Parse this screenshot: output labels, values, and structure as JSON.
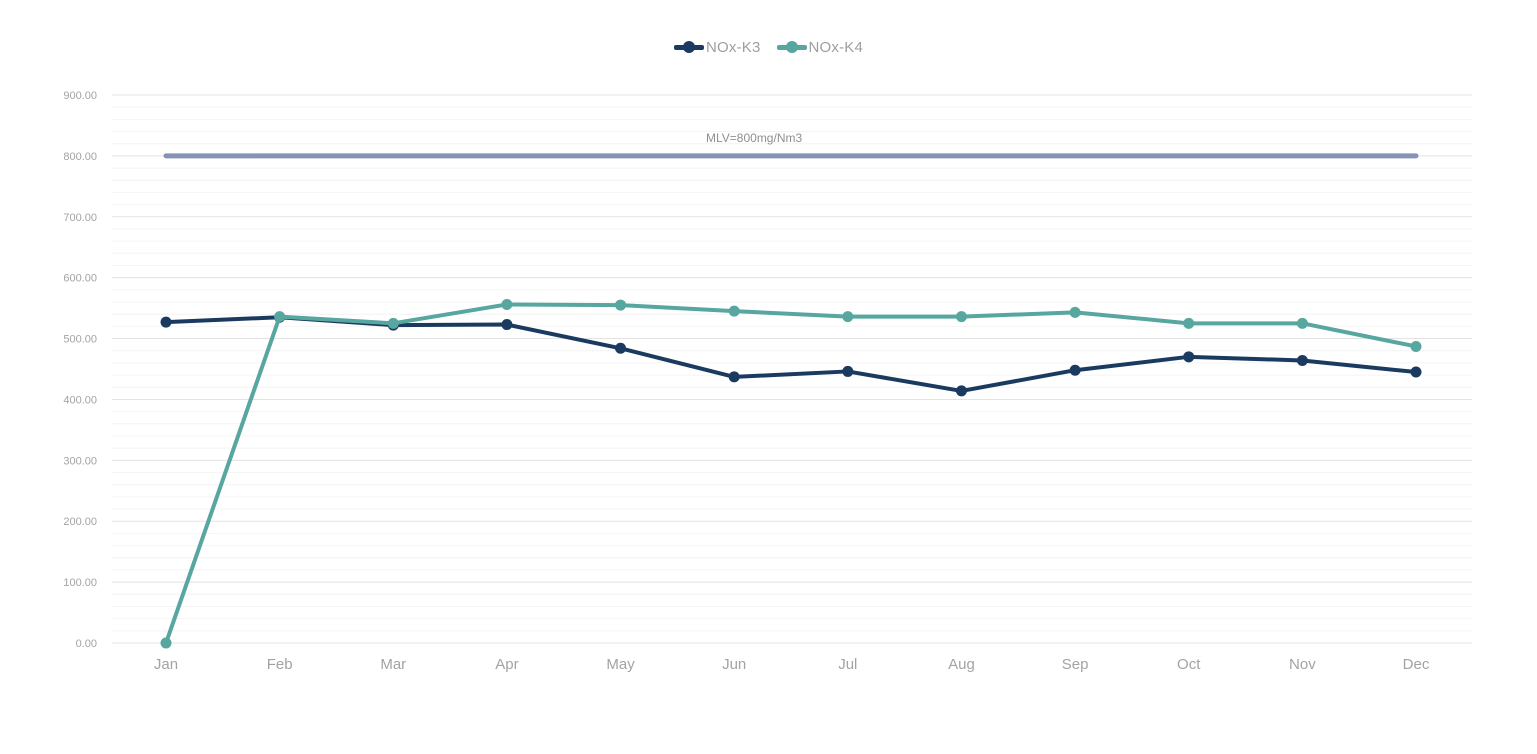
{
  "chart_data": {
    "type": "line",
    "title": "",
    "xlabel": "",
    "ylabel": "",
    "x": [
      "Jan",
      "Feb",
      "Mar",
      "Apr",
      "May",
      "Jun",
      "Jul",
      "Aug",
      "Sep",
      "Oct",
      "Nov",
      "Dec"
    ],
    "series": [
      {
        "name": "NOx-K3",
        "color": "#1a3a60",
        "values": [
          527,
          535,
          522,
          523,
          484,
          437,
          446,
          414,
          448,
          470,
          464,
          445
        ]
      },
      {
        "name": "NOx-K4",
        "color": "#57a6a0",
        "values": [
          0,
          536,
          525,
          556,
          555,
          545,
          536,
          536,
          543,
          525,
          525,
          487
        ]
      }
    ],
    "reference_line": {
      "label": "MLV=800mg/Nm3",
      "value": 800,
      "color": "#8494b4"
    },
    "y_axis": {
      "min": 0,
      "max": 900,
      "major_step": 100,
      "minor_step": 20
    },
    "y_ticks": [
      "0.00",
      "100.00",
      "200.00",
      "300.00",
      "400.00",
      "500.00",
      "600.00",
      "700.00",
      "800.00",
      "900.00"
    ],
    "grid": "horizontal",
    "legend_position": "top",
    "colors": {
      "major_grid": "#e3e3e3",
      "minor_grid": "#f4f4f4",
      "tick_text": "#a3a3a3",
      "month_text": "#a3a3a3",
      "legend_text": "#9e9e9e",
      "reference_text": "#8f8f8f",
      "background": "#ffffff"
    }
  }
}
